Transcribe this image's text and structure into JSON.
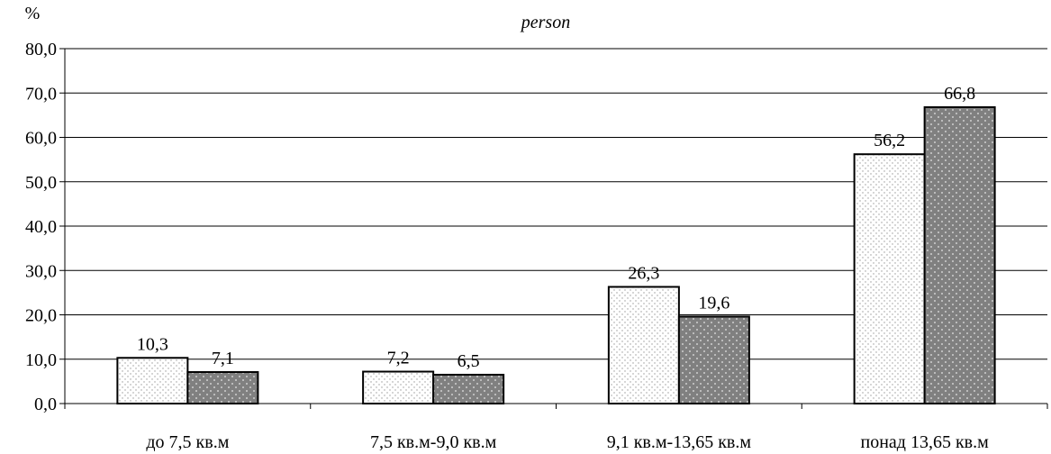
{
  "chart_data": {
    "type": "bar",
    "title": "",
    "subtitle": "person",
    "ylabel": "%",
    "xlabel": "",
    "ylim": [
      0,
      80
    ],
    "yticks": [
      "0,0",
      "10,0",
      "20,0",
      "30,0",
      "40,0",
      "50,0",
      "60,0",
      "70,0",
      "80,0"
    ],
    "categories": [
      "до 7,5 кв.м",
      "7,5 кв.м-9,0 кв.м",
      "9,1 кв.м-13,65 кв.м",
      "понад 13,65 кв.м"
    ],
    "series": [
      {
        "values": [
          10.3,
          7.2,
          26.3,
          56.2
        ],
        "labels": [
          "10,3",
          "7,2",
          "26,3",
          "56,2"
        ],
        "fill": "#ffffff",
        "pattern": "light-dotted"
      },
      {
        "values": [
          7.1,
          6.5,
          19.6,
          66.8
        ],
        "labels": [
          "7,1",
          "6,5",
          "19,6",
          "66,8"
        ],
        "fill": "#808080",
        "pattern": "dark-dotted"
      }
    ],
    "grid": true,
    "legend": "none"
  }
}
